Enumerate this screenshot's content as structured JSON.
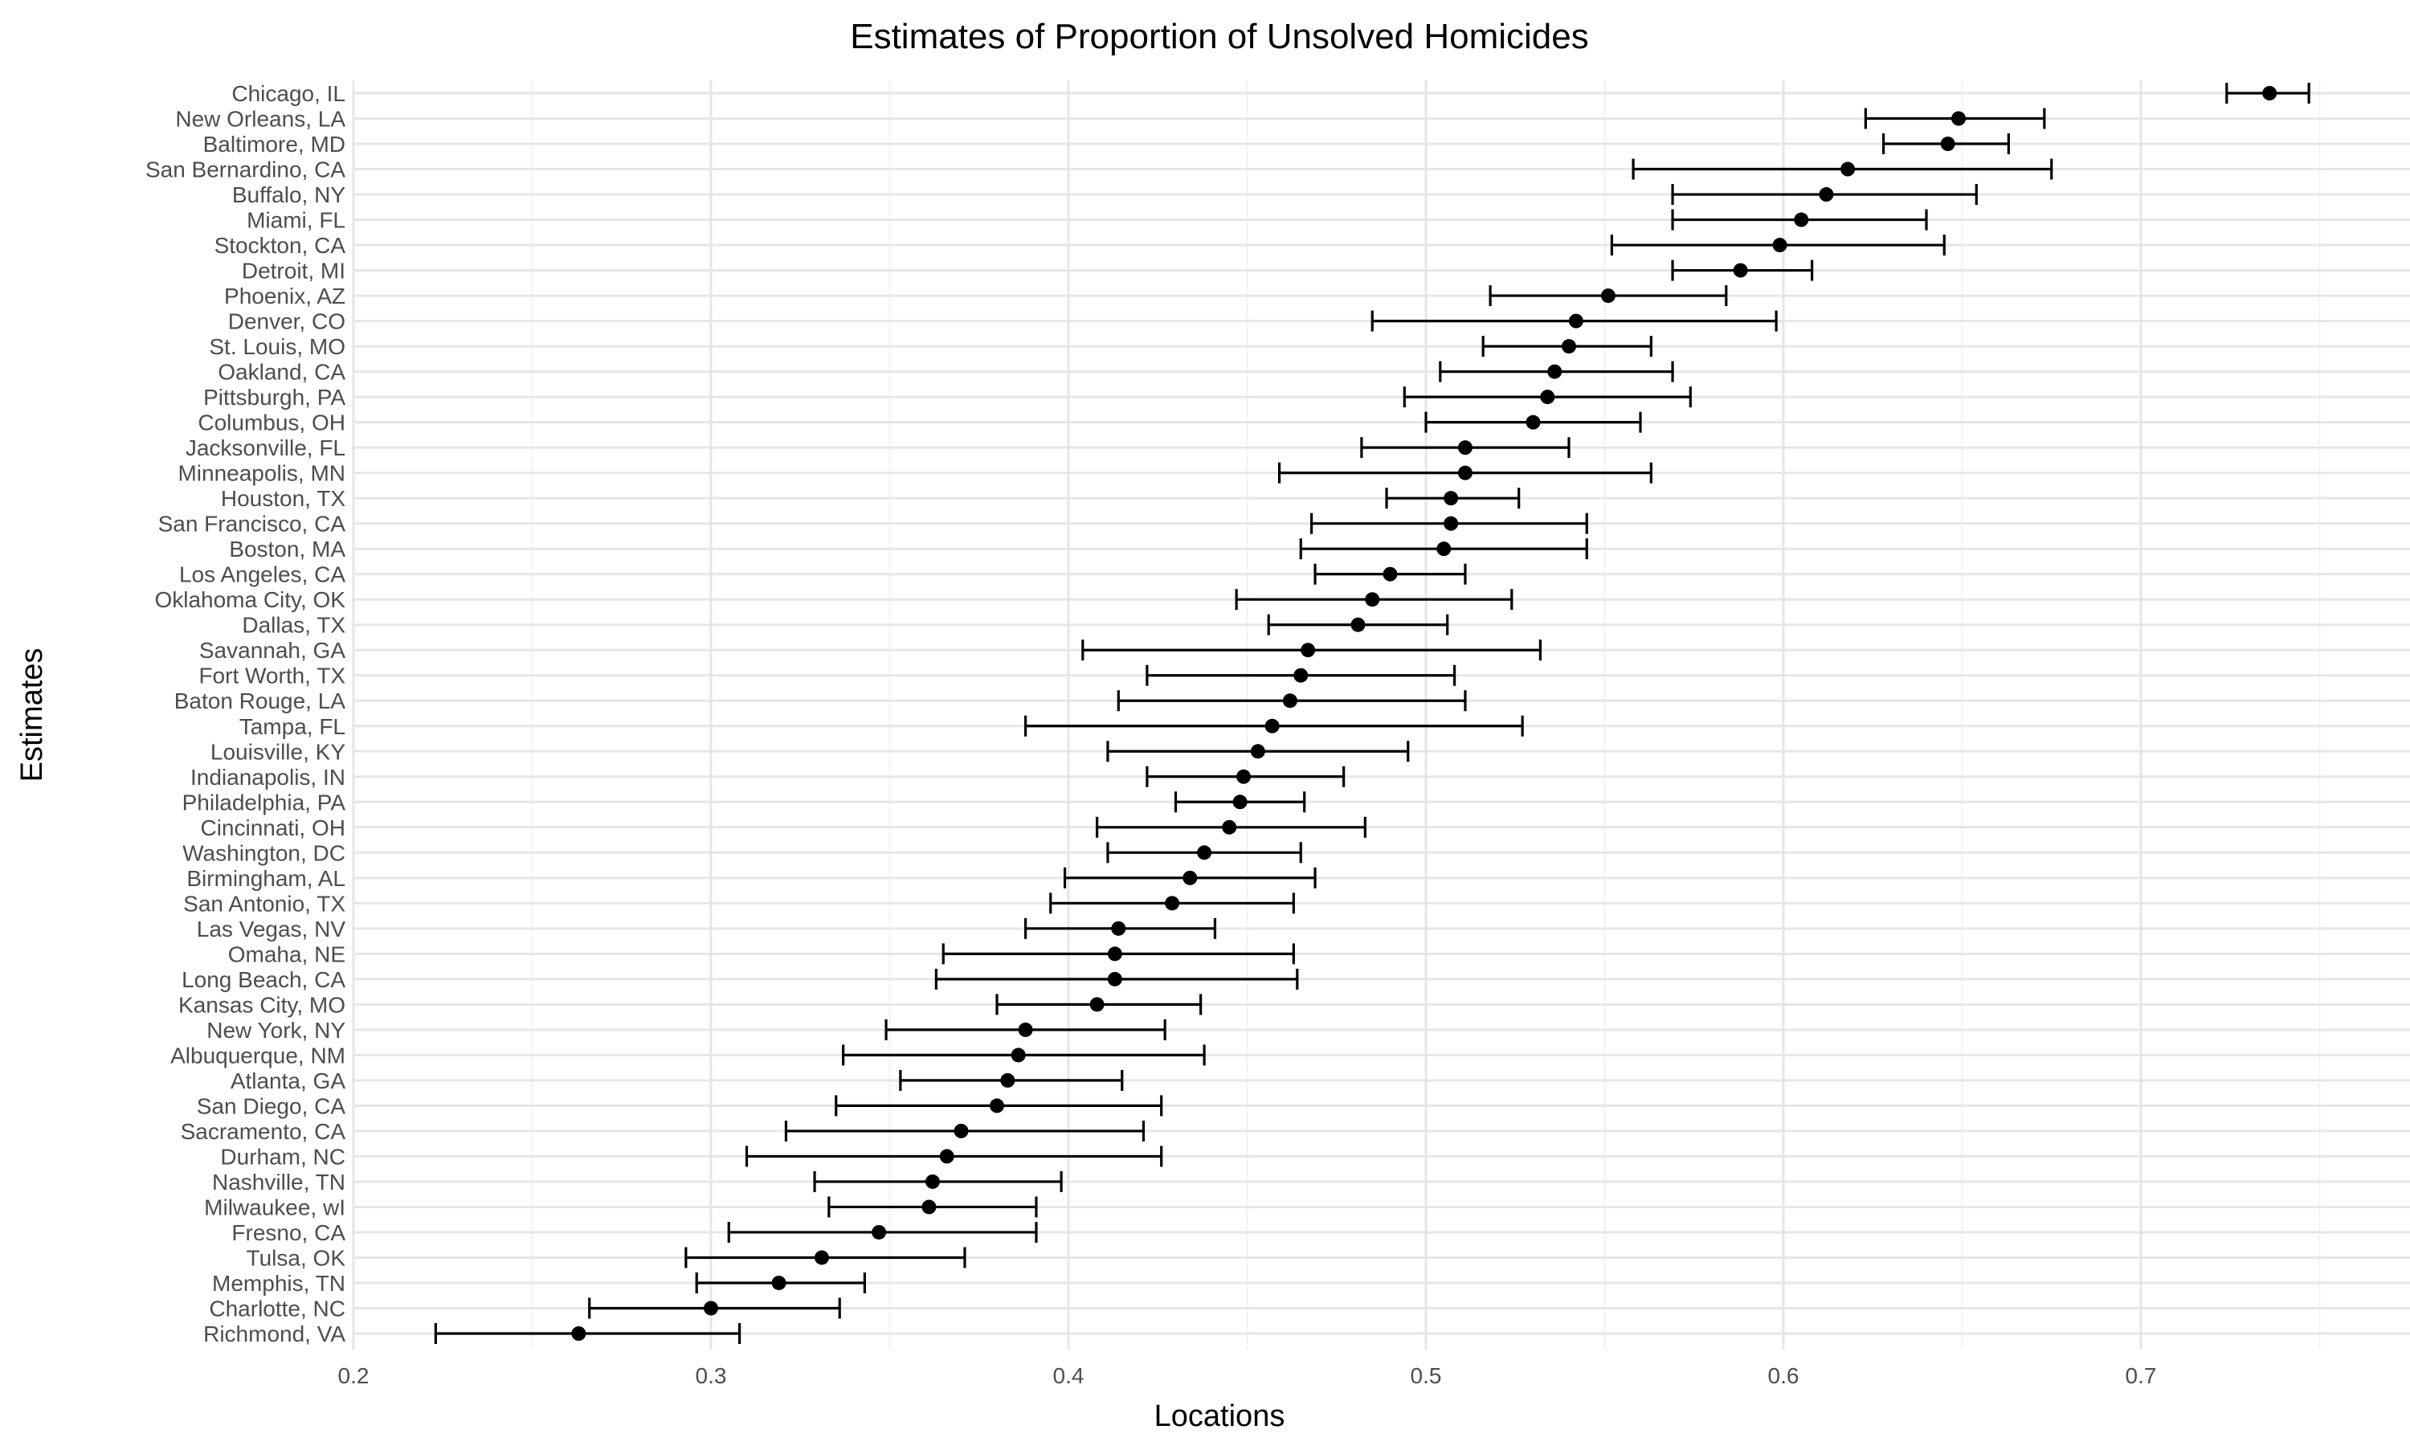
{
  "chart_data": {
    "type": "scatter",
    "title": "Estimates of Proportion of Unsolved Homicides",
    "xlabel": "Locations",
    "ylabel": "Estimates",
    "xlim": [
      0.2,
      0.77
    ],
    "x_ticks": [
      0.2,
      0.3,
      0.4,
      0.5,
      0.6,
      0.7
    ],
    "x_tick_labels": [
      "0.2",
      "0.3",
      "0.4",
      "0.5",
      "0.6",
      "0.7"
    ],
    "grid": true,
    "error_bars": true,
    "points": [
      {
        "city": "Chicago, IL",
        "estimate": 0.736,
        "lower": 0.724,
        "upper": 0.747
      },
      {
        "city": "New Orleans, LA",
        "estimate": 0.649,
        "lower": 0.623,
        "upper": 0.673
      },
      {
        "city": "Baltimore, MD",
        "estimate": 0.646,
        "lower": 0.628,
        "upper": 0.663
      },
      {
        "city": "San Bernardino, CA",
        "estimate": 0.618,
        "lower": 0.558,
        "upper": 0.675
      },
      {
        "city": "Buffalo, NY",
        "estimate": 0.612,
        "lower": 0.569,
        "upper": 0.654
      },
      {
        "city": "Miami, FL",
        "estimate": 0.605,
        "lower": 0.569,
        "upper": 0.64
      },
      {
        "city": "Stockton, CA",
        "estimate": 0.599,
        "lower": 0.552,
        "upper": 0.645
      },
      {
        "city": "Detroit, MI",
        "estimate": 0.588,
        "lower": 0.569,
        "upper": 0.608
      },
      {
        "city": "Phoenix, AZ",
        "estimate": 0.551,
        "lower": 0.518,
        "upper": 0.584
      },
      {
        "city": "Denver, CO",
        "estimate": 0.542,
        "lower": 0.485,
        "upper": 0.598
      },
      {
        "city": "St. Louis, MO",
        "estimate": 0.54,
        "lower": 0.516,
        "upper": 0.563
      },
      {
        "city": "Oakland, CA",
        "estimate": 0.536,
        "lower": 0.504,
        "upper": 0.569
      },
      {
        "city": "Pittsburgh, PA",
        "estimate": 0.534,
        "lower": 0.494,
        "upper": 0.574
      },
      {
        "city": "Columbus, OH",
        "estimate": 0.53,
        "lower": 0.5,
        "upper": 0.56
      },
      {
        "city": "Jacksonville, FL",
        "estimate": 0.511,
        "lower": 0.482,
        "upper": 0.54
      },
      {
        "city": "Minneapolis, MN",
        "estimate": 0.511,
        "lower": 0.459,
        "upper": 0.563
      },
      {
        "city": "Houston, TX",
        "estimate": 0.507,
        "lower": 0.489,
        "upper": 0.526
      },
      {
        "city": "San Francisco, CA",
        "estimate": 0.507,
        "lower": 0.468,
        "upper": 0.545
      },
      {
        "city": "Boston, MA",
        "estimate": 0.505,
        "lower": 0.465,
        "upper": 0.545
      },
      {
        "city": "Los Angeles, CA",
        "estimate": 0.49,
        "lower": 0.469,
        "upper": 0.511
      },
      {
        "city": "Oklahoma City, OK",
        "estimate": 0.485,
        "lower": 0.447,
        "upper": 0.524
      },
      {
        "city": "Dallas, TX",
        "estimate": 0.481,
        "lower": 0.456,
        "upper": 0.506
      },
      {
        "city": "Savannah, GA",
        "estimate": 0.467,
        "lower": 0.404,
        "upper": 0.532
      },
      {
        "city": "Fort Worth, TX",
        "estimate": 0.465,
        "lower": 0.422,
        "upper": 0.508
      },
      {
        "city": "Baton Rouge, LA",
        "estimate": 0.462,
        "lower": 0.414,
        "upper": 0.511
      },
      {
        "city": "Tampa, FL",
        "estimate": 0.457,
        "lower": 0.388,
        "upper": 0.527
      },
      {
        "city": "Louisville, KY",
        "estimate": 0.453,
        "lower": 0.411,
        "upper": 0.495
      },
      {
        "city": "Indianapolis, IN",
        "estimate": 0.449,
        "lower": 0.422,
        "upper": 0.477
      },
      {
        "city": "Philadelphia, PA",
        "estimate": 0.448,
        "lower": 0.43,
        "upper": 0.466
      },
      {
        "city": "Cincinnati, OH",
        "estimate": 0.445,
        "lower": 0.408,
        "upper": 0.483
      },
      {
        "city": "Washington, DC",
        "estimate": 0.438,
        "lower": 0.411,
        "upper": 0.465
      },
      {
        "city": "Birmingham, AL",
        "estimate": 0.434,
        "lower": 0.399,
        "upper": 0.469
      },
      {
        "city": "San Antonio, TX",
        "estimate": 0.429,
        "lower": 0.395,
        "upper": 0.463
      },
      {
        "city": "Las Vegas, NV",
        "estimate": 0.414,
        "lower": 0.388,
        "upper": 0.441
      },
      {
        "city": "Omaha, NE",
        "estimate": 0.413,
        "lower": 0.365,
        "upper": 0.463
      },
      {
        "city": "Long Beach, CA",
        "estimate": 0.413,
        "lower": 0.363,
        "upper": 0.464
      },
      {
        "city": "Kansas City, MO",
        "estimate": 0.408,
        "lower": 0.38,
        "upper": 0.437
      },
      {
        "city": "New York, NY",
        "estimate": 0.388,
        "lower": 0.349,
        "upper": 0.427
      },
      {
        "city": "Albuquerque, NM",
        "estimate": 0.386,
        "lower": 0.337,
        "upper": 0.438
      },
      {
        "city": "Atlanta, GA",
        "estimate": 0.383,
        "lower": 0.353,
        "upper": 0.415
      },
      {
        "city": "San Diego, CA",
        "estimate": 0.38,
        "lower": 0.335,
        "upper": 0.426
      },
      {
        "city": "Sacramento, CA",
        "estimate": 0.37,
        "lower": 0.321,
        "upper": 0.421
      },
      {
        "city": "Durham, NC",
        "estimate": 0.366,
        "lower": 0.31,
        "upper": 0.426
      },
      {
        "city": "Nashville, TN",
        "estimate": 0.362,
        "lower": 0.329,
        "upper": 0.398
      },
      {
        "city": "Milwaukee, wI",
        "estimate": 0.361,
        "lower": 0.333,
        "upper": 0.391
      },
      {
        "city": "Fresno, CA",
        "estimate": 0.347,
        "lower": 0.305,
        "upper": 0.391
      },
      {
        "city": "Tulsa, OK",
        "estimate": 0.331,
        "lower": 0.293,
        "upper": 0.371
      },
      {
        "city": "Memphis, TN",
        "estimate": 0.319,
        "lower": 0.296,
        "upper": 0.343
      },
      {
        "city": "Charlotte, NC",
        "estimate": 0.3,
        "lower": 0.266,
        "upper": 0.336
      },
      {
        "city": "Richmond, VA",
        "estimate": 0.263,
        "lower": 0.223,
        "upper": 0.308
      }
    ]
  }
}
